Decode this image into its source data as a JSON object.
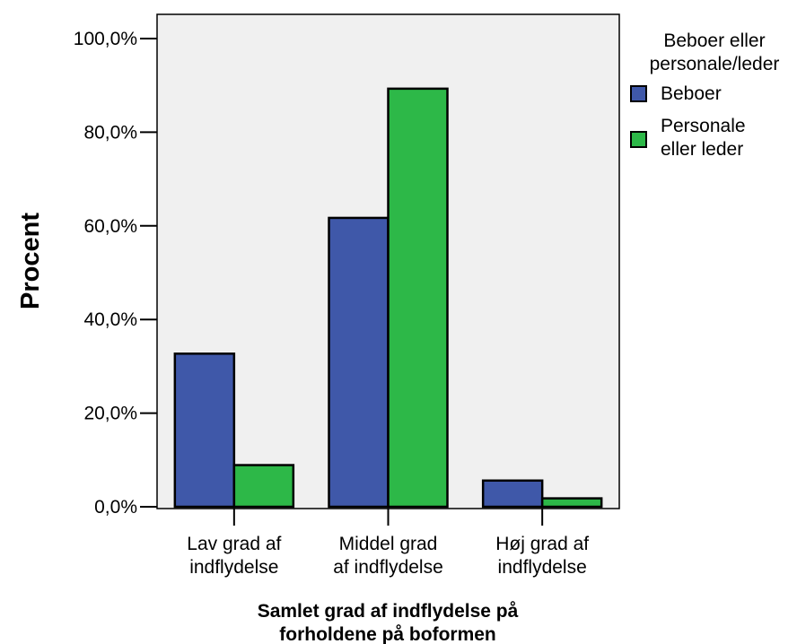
{
  "chart_data": {
    "type": "bar",
    "categories": [
      [
        "Lav grad af",
        "indflydelse"
      ],
      [
        "Middel grad",
        "af indflydelse"
      ],
      [
        "Høj grad af",
        "indflydelse"
      ]
    ],
    "series": [
      {
        "name": "Beboer",
        "values": [
          32.7,
          61.7,
          5.6
        ],
        "color": "#3f58a9"
      },
      {
        "name": "Personale eller leder",
        "legend_lines": [
          "Personale",
          "eller leder"
        ],
        "values": [
          8.9,
          89.3,
          1.8
        ],
        "color": "#2db848"
      }
    ],
    "ylim": [
      0,
      100
    ],
    "yticks": [
      0,
      20,
      40,
      60,
      80,
      100
    ],
    "ytick_labels": [
      "0,0%",
      "20,0%",
      "40,0%",
      "60,0%",
      "80,0%",
      "100,0%"
    ],
    "ylabel": "Procent",
    "xlabel_lines": [
      "Samlet grad af indflydelse på",
      "forholdene på boformen"
    ],
    "legend": {
      "title_lines": [
        "Beboer eller",
        "personale/leder"
      ],
      "placement": "right"
    },
    "plot_background": "#f0f0f0",
    "grid": false
  }
}
